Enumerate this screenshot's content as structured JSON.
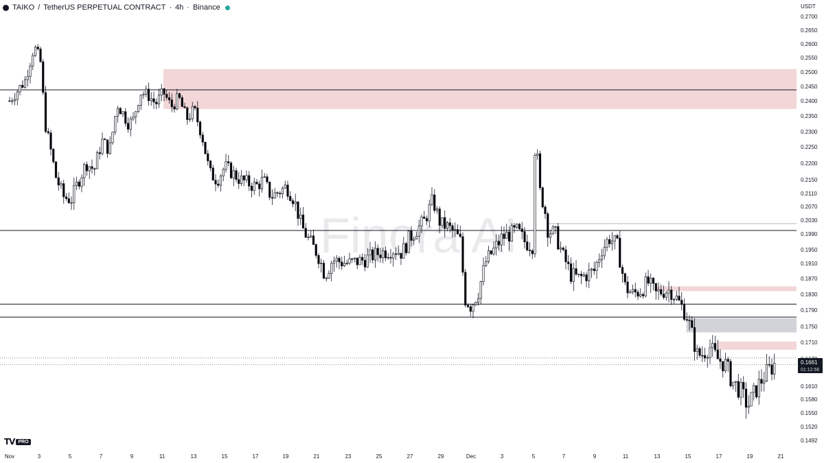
{
  "header": {
    "symbol": "TAIKO",
    "separator": "/",
    "description": "TetherUS PERPETUAL CONTRACT",
    "interval": "4h",
    "exchange": "Binance",
    "dot_sep": "·"
  },
  "watermark": "Finora AI",
  "branding": {
    "logo": "TV",
    "badge": "PRO"
  },
  "colors": {
    "up": "#ffffff",
    "down": "#000000",
    "wick": "#131722",
    "supply_zone": "#e8b4b8",
    "demand_zone": "#b2b5be",
    "level_line": "#131722",
    "price_label_bg": "#131722"
  },
  "chart_data": {
    "type": "candlestick",
    "currency": "USDT",
    "ylim": [
      0.1492,
      0.27
    ],
    "y_ticks": [
      "0.2700",
      "0.2650",
      "0.2600",
      "0.2550",
      "0.2500",
      "0.2450",
      "0.2400",
      "0.2350",
      "0.2300",
      "0.2250",
      "0.2200",
      "0.2150",
      "0.2110",
      "0.2070",
      "0.2030",
      "0.1990",
      "0.1950",
      "0.1910",
      "0.1870",
      "0.1830",
      "0.1790",
      "0.1750",
      "0.1710",
      "0.1670",
      "0.1610",
      "0.1580",
      "0.1550",
      "0.1520",
      "0.1492"
    ],
    "x_ticks": [
      "Nov",
      "3",
      "5",
      "7",
      "9",
      "11",
      "13",
      "15",
      "17",
      "19",
      "21",
      "23",
      "25",
      "27",
      "29",
      "Dec",
      "3",
      "5",
      "7",
      "9",
      "11",
      "13",
      "15",
      "17",
      "19",
      "21"
    ],
    "current_price": "0.1661",
    "countdown": "01:12:56",
    "grid": false,
    "horizontal_levels": [
      0.2438,
      0.2,
      0.1805,
      0.1773
    ],
    "dotted_levels": [
      0.1672,
      0.1657
    ],
    "zones": [
      {
        "kind": "supply",
        "start_date": "Nov 11",
        "top": 0.251,
        "bottom": 0.2373
      },
      {
        "kind": "supply",
        "start_date": "Dec 13",
        "top": 0.185,
        "bottom": 0.1838
      },
      {
        "kind": "supply",
        "start_date": "Dec 17",
        "top": 0.1712,
        "bottom": 0.1692
      },
      {
        "kind": "demand",
        "start_date": "Dec 15",
        "top": 0.177,
        "bottom": 0.1735
      },
      {
        "kind": "level",
        "start_date": "Dec 6",
        "top": 0.202,
        "bottom": 0.202
      }
    ],
    "price_path": [
      [
        "Nov 1",
        0.24
      ],
      [
        "Nov 2",
        0.247
      ],
      [
        "Nov 2.6",
        0.259
      ],
      [
        "Nov 3",
        0.254
      ],
      [
        "Nov 3.3",
        0.233
      ],
      [
        "Nov 4",
        0.216
      ],
      [
        "Nov 4.5",
        0.21
      ],
      [
        "Nov 5",
        0.209
      ],
      [
        "Nov 5.5",
        0.215
      ],
      [
        "Nov 6",
        0.22
      ],
      [
        "Nov 6.5",
        0.218
      ],
      [
        "Nov 7",
        0.227
      ],
      [
        "Nov 7.5",
        0.224
      ],
      [
        "Nov 8",
        0.239
      ],
      [
        "Nov 8.7",
        0.233
      ],
      [
        "Nov 9",
        0.233
      ],
      [
        "Nov 9.5",
        0.243
      ],
      [
        "Nov 10",
        0.242
      ],
      [
        "Nov 10.5",
        0.239
      ],
      [
        "Nov 11",
        0.243
      ],
      [
        "Nov 11.5",
        0.238
      ],
      [
        "Nov 12",
        0.241
      ],
      [
        "Nov 12.5",
        0.234
      ],
      [
        "Nov 13",
        0.237
      ],
      [
        "Nov 13.5",
        0.229
      ],
      [
        "Nov 14",
        0.217
      ],
      [
        "Nov 14.5",
        0.215
      ],
      [
        "Nov 15",
        0.219
      ],
      [
        "Nov 16",
        0.215
      ],
      [
        "Nov 17",
        0.213
      ],
      [
        "Nov 17.5",
        0.215
      ],
      [
        "Nov 18",
        0.21
      ],
      [
        "Nov 19",
        0.213
      ],
      [
        "Nov 19.5",
        0.209
      ],
      [
        "Nov 20",
        0.201
      ],
      [
        "Nov 20.5",
        0.197
      ],
      [
        "Nov 21",
        0.194
      ],
      [
        "Nov 21.5",
        0.188
      ],
      [
        "Nov 22",
        0.192
      ],
      [
        "Nov 23",
        0.191
      ],
      [
        "Nov 24",
        0.192
      ],
      [
        "Nov 25",
        0.194
      ],
      [
        "Nov 26",
        0.195
      ],
      [
        "Nov 26.5",
        0.194
      ],
      [
        "Nov 27",
        0.198
      ],
      [
        "Nov 28",
        0.203
      ],
      [
        "Nov 28.5",
        0.209
      ],
      [
        "Nov 29",
        0.202
      ],
      [
        "Nov 29.5",
        0.201
      ],
      [
        "Nov 30",
        0.199
      ],
      [
        "Nov 30.3",
        0.197
      ],
      [
        "Nov 30.6",
        0.182
      ],
      [
        "Dec 1",
        0.18
      ],
      [
        "Dec 1.5",
        0.184
      ],
      [
        "Dec 2",
        0.192
      ],
      [
        "Dec 3",
        0.198
      ],
      [
        "Dec 3.5",
        0.199
      ],
      [
        "Dec 4",
        0.2
      ],
      [
        "Dec 4.5",
        0.197
      ],
      [
        "Dec 5",
        0.196
      ],
      [
        "Dec 5.2",
        0.233
      ],
      [
        "Dec 5.4",
        0.213
      ],
      [
        "Dec 5.8",
        0.206
      ],
      [
        "Dec 6",
        0.2
      ],
      [
        "Dec 6.5",
        0.199
      ],
      [
        "Dec 7",
        0.193
      ],
      [
        "Dec 7.5",
        0.188
      ],
      [
        "Dec 8",
        0.187
      ],
      [
        "Dec 9",
        0.189
      ],
      [
        "Dec 9.5",
        0.195
      ],
      [
        "Dec 10",
        0.198
      ],
      [
        "Dec 10.5",
        0.196
      ],
      [
        "Dec 11",
        0.185
      ],
      [
        "Dec 11.5",
        0.183
      ],
      [
        "Dec 12",
        0.184
      ],
      [
        "Dec 12.5",
        0.186
      ],
      [
        "Dec 13",
        0.183
      ],
      [
        "Dec 13.5",
        0.184
      ],
      [
        "Dec 14",
        0.184
      ],
      [
        "Dec 14.5",
        0.181
      ],
      [
        "Dec 15",
        0.178
      ],
      [
        "Dec 15.3",
        0.174
      ],
      [
        "Dec 15.7",
        0.168
      ],
      [
        "Dec 16",
        0.168
      ],
      [
        "Dec 16.5",
        0.17
      ],
      [
        "Dec 17",
        0.167
      ],
      [
        "Dec 17.5",
        0.166
      ],
      [
        "Dec 18",
        0.162
      ],
      [
        "Dec 18.5",
        0.16
      ],
      [
        "Dec 19",
        0.1565
      ],
      [
        "Dec 19.5",
        0.16
      ],
      [
        "Dec 20",
        0.163
      ],
      [
        "Dec 20.5",
        0.165
      ],
      [
        "Dec 20.8",
        0.1661
      ]
    ]
  }
}
